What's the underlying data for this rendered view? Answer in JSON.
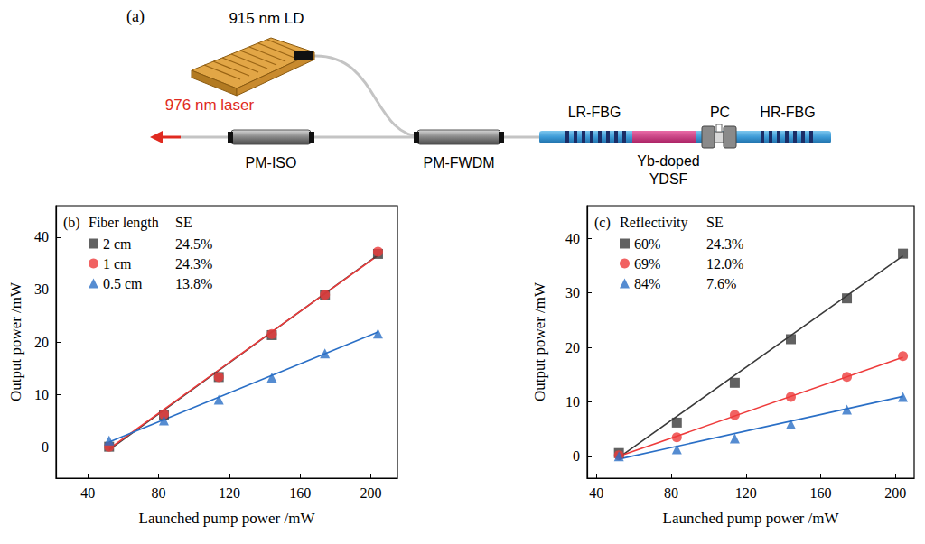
{
  "diagram": {
    "panel": "(a)",
    "pump": "915 nm LD",
    "output": "976 nm laser",
    "isolator": "PM-ISO",
    "wdm": "PM-FWDM",
    "lr_fbg": "LR-FBG",
    "gain_fiber": [
      "Yb-doped",
      "YDSF"
    ],
    "pc": "PC",
    "hr_fbg": "HR-FBG"
  },
  "chart_data": [
    {
      "type": "scatter",
      "title": "(b)",
      "legend_title": "Fiber length",
      "value_title": "SE",
      "xlabel": "Launched pump power /mW",
      "ylabel": "Output power /mW",
      "x": [
        52,
        83,
        114,
        144,
        174,
        204
      ],
      "xlim": [
        22,
        215
      ],
      "xticks": [
        40,
        80,
        120,
        160,
        200
      ],
      "ylim": [
        -6,
        46
      ],
      "yticks": [
        0,
        10,
        20,
        30,
        40
      ],
      "grid": false,
      "legend": "upper left",
      "series": [
        {
          "name": "2 cm",
          "color": "#3a3a3a",
          "marker": "square",
          "se": {
            "value": 24.5,
            "label": "24.5%"
          },
          "values": [
            0,
            6,
            13.3,
            21.3,
            29,
            36.8
          ],
          "fit_x": [
            52,
            204
          ],
          "fit_values": [
            -0.6,
            36.6
          ]
        },
        {
          "name": "1 cm",
          "color": "#ee3b3b",
          "marker": "circle",
          "se": {
            "value": 24.3,
            "label": "24.3%"
          },
          "values": [
            0,
            6.2,
            13.3,
            21.5,
            29,
            37.2
          ],
          "fit_x": [
            52,
            204
          ],
          "fit_values": [
            -0.4,
            36.5
          ]
        },
        {
          "name": "0.5 cm",
          "color": "#2a6fc6",
          "marker": "triangle",
          "se": {
            "value": 13.8,
            "label": "13.8%"
          },
          "values": [
            1.2,
            5,
            9,
            13.2,
            17.8,
            21.6
          ],
          "fit_x": [
            52,
            204
          ],
          "fit_values": [
            0.9,
            21.9
          ]
        }
      ]
    },
    {
      "type": "scatter",
      "title": "(c)",
      "legend_title": "Reflectivity",
      "value_title": "SE",
      "xlabel": "Launched pump power /mW",
      "ylabel": "Output power /mW",
      "x": [
        52,
        83,
        114,
        144,
        174,
        204
      ],
      "xlim": [
        35,
        210
      ],
      "xticks": [
        40,
        80,
        120,
        160,
        200
      ],
      "ylim": [
        -4,
        46
      ],
      "yticks": [
        0,
        10,
        20,
        30,
        40
      ],
      "grid": false,
      "legend": "upper left",
      "series": [
        {
          "name": "60%",
          "color": "#3a3a3a",
          "marker": "square",
          "se": {
            "value": 24.3,
            "label": "24.3%"
          },
          "values": [
            0.6,
            6.2,
            13.5,
            21.5,
            29,
            37.2
          ],
          "fit_x": [
            52,
            204
          ],
          "fit_values": [
            -0.2,
            36.8
          ]
        },
        {
          "name": "69%",
          "color": "#ee3b3b",
          "marker": "circle",
          "se": {
            "value": 12.0,
            "label": "12.0%"
          },
          "values": [
            0.2,
            3.5,
            7.6,
            10.9,
            14.6,
            18.4
          ],
          "fit_x": [
            52,
            204
          ],
          "fit_values": [
            0,
            18.2
          ]
        },
        {
          "name": "84%",
          "color": "#2a6fc6",
          "marker": "triangle",
          "se": {
            "value": 7.6,
            "label": "7.6%"
          },
          "values": [
            0,
            1.3,
            3.3,
            5.9,
            8.6,
            10.9
          ],
          "fit_x": [
            52,
            204
          ],
          "fit_values": [
            -0.5,
            11.0
          ]
        }
      ]
    }
  ]
}
